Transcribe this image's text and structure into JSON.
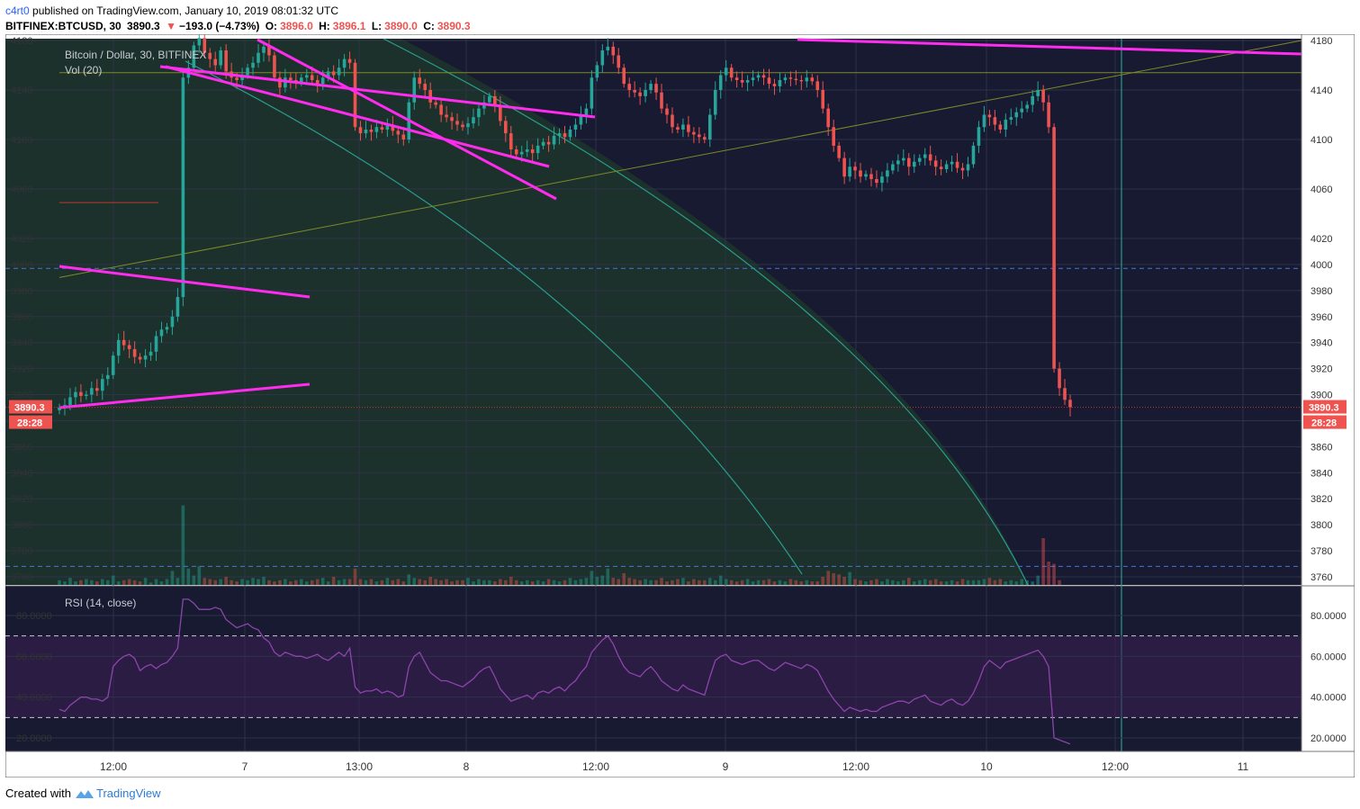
{
  "header": {
    "user": "c4rt0",
    "published": "published on TradingView.com, January 10, 2019 08:01:32 UTC",
    "symbol_line": "BITFINEX:BTCUSD, 30",
    "last": "3890.3",
    "arrow": "▼",
    "change": "−193.0 (−4.73%)",
    "o_label": "O:",
    "o": "3896.0",
    "h_label": "H:",
    "h": "3896.1",
    "l_label": "L:",
    "l": "3890.0",
    "c_label": "C:",
    "c": "3890.3"
  },
  "footer": {
    "created": "Created with",
    "brand": "TradingView"
  },
  "colors": {
    "background": "#171a30",
    "up": "#26a69a",
    "down": "#ef5350",
    "trendline": "#ff2cf0",
    "fan": "#2a9d8f",
    "olive": "#7e8a2a",
    "rsi": "#8e44ad",
    "price_tag": "#ef5350",
    "level_line": "#4a74d8"
  },
  "chart_data": [
    {
      "type": "candlestick",
      "title": "Bitcoin / Dollar, 30, BITFINEX",
      "subtitle": "Vol (20)",
      "ylim": [
        3750,
        4185
      ],
      "y_ticks": [
        3760,
        3780,
        3800,
        3820,
        3840,
        3860,
        3880,
        3900,
        3920,
        3940,
        3960,
        3980,
        4000,
        4020,
        4060,
        4100,
        4140,
        4180
      ],
      "x_ticks": [
        "12:00",
        "7",
        "13:00",
        "8",
        "12:00",
        "9",
        "12:00",
        "10",
        "12:00",
        "11"
      ],
      "last_price": "3890.3",
      "countdown": "28:28",
      "horizontal_levels": [
        3997,
        3768,
        4154
      ],
      "close_series": [
        3890,
        3892,
        3898,
        3902,
        3899,
        3900,
        3905,
        3903,
        3912,
        3915,
        3930,
        3942,
        3938,
        3935,
        3929,
        3927,
        3930,
        3933,
        3945,
        3950,
        3952,
        3960,
        3975,
        4150,
        4158,
        4176,
        4182,
        4170,
        4165,
        4160,
        4172,
        4155,
        4150,
        4148,
        4152,
        4158,
        4162,
        4170,
        4175,
        4168,
        4150,
        4142,
        4150,
        4148,
        4146,
        4150,
        4152,
        4148,
        4145,
        4150,
        4155,
        4152,
        4158,
        4165,
        4162,
        4110,
        4105,
        4108,
        4106,
        4110,
        4108,
        4112,
        4107,
        4104,
        4100,
        4130,
        4150,
        4145,
        4140,
        4130,
        4128,
        4120,
        4118,
        4115,
        4112,
        4110,
        4113,
        4118,
        4125,
        4130,
        4135,
        4128,
        4115,
        4105,
        4092,
        4088,
        4090,
        4092,
        4089,
        4095,
        4098,
        4096,
        4103,
        4105,
        4102,
        4108,
        4112,
        4120,
        4125,
        4150,
        4160,
        4172,
        4175,
        4168,
        4158,
        4145,
        4140,
        4138,
        4135,
        4140,
        4145,
        4138,
        4125,
        4120,
        4110,
        4108,
        4112,
        4106,
        4104,
        4102,
        4100,
        4120,
        4140,
        4152,
        4158,
        4150,
        4148,
        4146,
        4148,
        4150,
        4152,
        4150,
        4145,
        4143,
        4148,
        4150,
        4149,
        4148,
        4147,
        4150,
        4147,
        4140,
        4125,
        4110,
        4095,
        4085,
        4070,
        4078,
        4075,
        4070,
        4072,
        4068,
        4065,
        4070,
        4075,
        4080,
        4083,
        4085,
        4078,
        4082,
        4085,
        4088,
        4083,
        4078,
        4076,
        4080,
        4082,
        4077,
        4075,
        4080,
        4095,
        4110,
        4120,
        4118,
        4112,
        4108,
        4116,
        4118,
        4122,
        4125,
        4128,
        4135,
        4140,
        4130,
        4110,
        3920,
        3905,
        3896,
        3890.3
      ],
      "volume_series": [
        4,
        3,
        6,
        3,
        4,
        5,
        4,
        3,
        5,
        4,
        8,
        3,
        4,
        5,
        4,
        3,
        6,
        2,
        5,
        3,
        5,
        12,
        6,
        68,
        14,
        8,
        16,
        6,
        5,
        4,
        5,
        7,
        4,
        3,
        5,
        4,
        6,
        5,
        7,
        4,
        3,
        4,
        5,
        3,
        4,
        5,
        3,
        4,
        5,
        6,
        3,
        7,
        4,
        5,
        5,
        14,
        5,
        4,
        5,
        3,
        4,
        6,
        4,
        5,
        3,
        9,
        6,
        5,
        4,
        7,
        5,
        4,
        5,
        3,
        4,
        4,
        6,
        3,
        5,
        4,
        4,
        3,
        5,
        4,
        7,
        4,
        3,
        4,
        3,
        4,
        3,
        5,
        4,
        3,
        4,
        6,
        4,
        5,
        6,
        12,
        7,
        8,
        14,
        6,
        5,
        10,
        6,
        5,
        4,
        5,
        4,
        4,
        6,
        3,
        4,
        5,
        6,
        3,
        5,
        4,
        4,
        6,
        4,
        8,
        5,
        4,
        3,
        4,
        5,
        3,
        4,
        4,
        5,
        3,
        4,
        3,
        5,
        4,
        3,
        4,
        3,
        3,
        7,
        12,
        10,
        9,
        7,
        11,
        5,
        4,
        3,
        4,
        5,
        3,
        5,
        4,
        3,
        4,
        6,
        3,
        4,
        5,
        4,
        5,
        3,
        3,
        4,
        3,
        5,
        4,
        4,
        4,
        5,
        6,
        4,
        5,
        3,
        4,
        3,
        5,
        4,
        3,
        8,
        40,
        20,
        18,
        4
      ]
    },
    {
      "type": "line",
      "title": "RSI (14, close)",
      "ylim": [
        14,
        96
      ],
      "y_ticks": [
        "80.0000",
        "60.0000",
        "40.0000",
        "20.0000"
      ],
      "bands": [
        70,
        30
      ],
      "values": [
        34,
        33,
        36,
        38,
        40,
        40,
        39,
        39,
        38,
        40,
        55,
        58,
        60,
        61,
        59,
        53,
        55,
        56,
        54,
        56,
        57,
        60,
        64,
        88,
        88,
        86,
        83,
        83,
        83,
        84,
        83,
        78,
        76,
        74,
        75,
        76,
        74,
        73,
        69,
        67,
        62,
        60,
        62,
        61,
        60,
        60,
        59,
        60,
        61,
        59,
        58,
        60,
        62,
        60,
        64,
        45,
        42,
        43,
        43,
        44,
        42,
        43,
        42,
        40,
        41,
        55,
        60,
        62,
        57,
        52,
        50,
        48,
        48,
        47,
        46,
        45,
        47,
        49,
        52,
        54,
        55,
        50,
        44,
        41,
        38,
        39,
        40,
        41,
        39,
        42,
        43,
        42,
        44,
        45,
        43,
        46,
        48,
        52,
        55,
        62,
        65,
        68,
        70,
        66,
        60,
        55,
        52,
        51,
        50,
        53,
        55,
        52,
        48,
        46,
        44,
        43,
        46,
        44,
        43,
        42,
        41,
        50,
        58,
        60,
        61,
        58,
        57,
        56,
        57,
        58,
        58,
        56,
        54,
        53,
        55,
        57,
        56,
        55,
        54,
        56,
        55,
        53,
        48,
        43,
        39,
        36,
        33,
        35,
        34,
        33,
        34,
        33,
        33,
        35,
        36,
        37,
        38,
        38,
        37,
        39,
        40,
        41,
        38,
        37,
        36,
        38,
        39,
        37,
        36,
        38,
        42,
        48,
        55,
        58,
        56,
        54,
        57,
        58,
        59,
        60,
        61,
        62,
        63,
        60,
        55,
        20,
        19,
        18,
        17
      ],
      "x_ticks": [
        "12:00",
        "7",
        "13:00",
        "8",
        "12:00",
        "9",
        "12:00",
        "10",
        "12:00",
        "11"
      ]
    }
  ]
}
